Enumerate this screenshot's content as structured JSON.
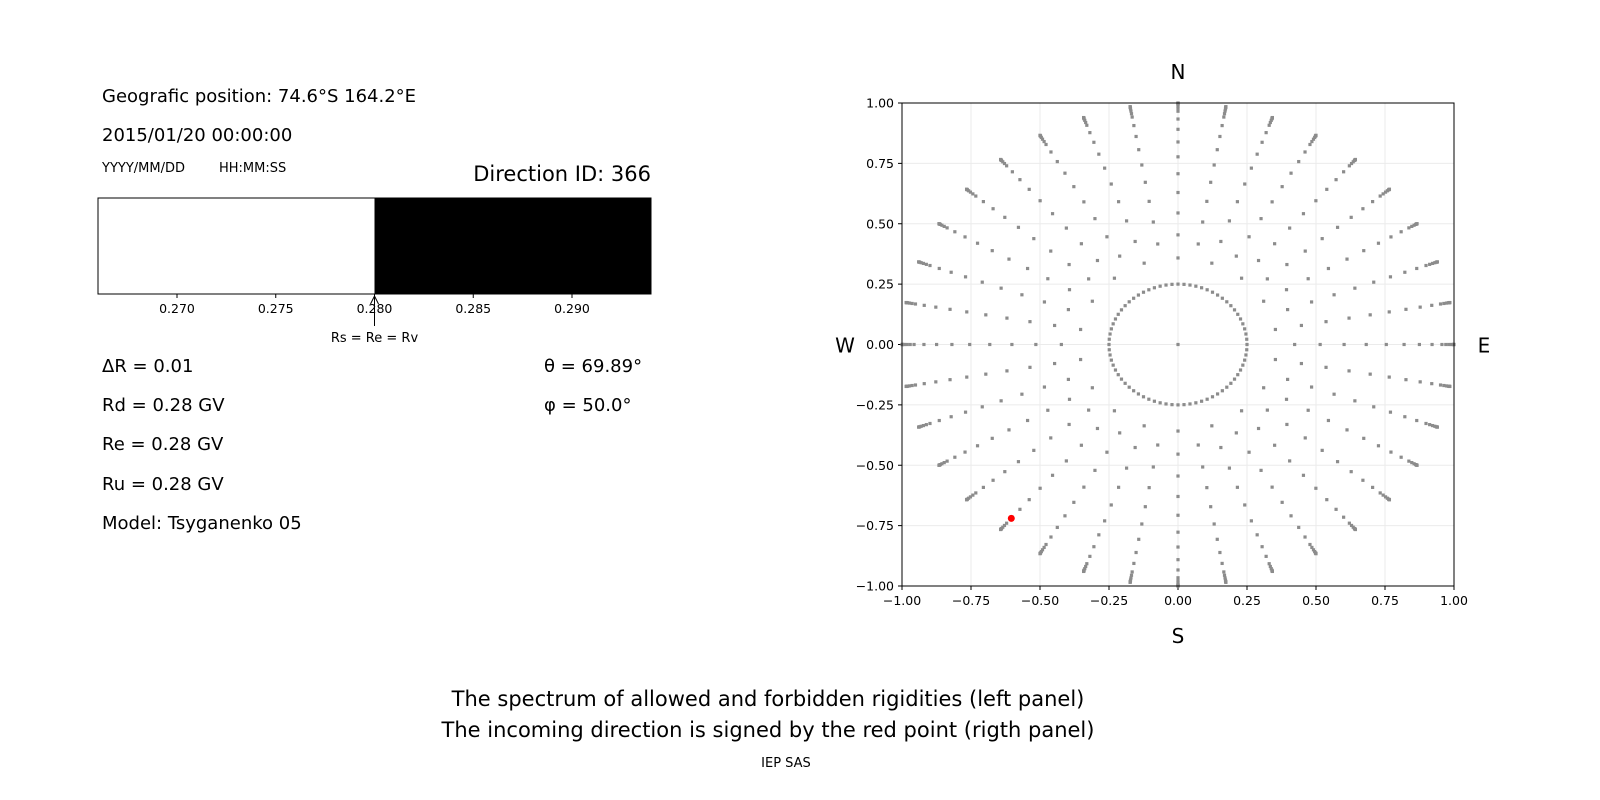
{
  "left_panel": {
    "position": "Geografic position: 74.6°S 164.2°E",
    "datetime": "2015/01/20 00:00:00",
    "date_format": "YYYY/MM/DD",
    "time_format": "HH:MM:SS",
    "direction_id": "Direction ID: 366",
    "delta_r": "ΔR = 0.01",
    "rd": "Rd = 0.28 GV",
    "re": "Re = 0.28 GV",
    "ru": "Ru = 0.28 GV",
    "model": "Model: Tsyganenko 05",
    "theta": "θ = 69.89°",
    "phi": "φ = 50.0°"
  },
  "chart_data": [
    {
      "type": "bar",
      "xlim": [
        0.266,
        0.294
      ],
      "xticks": [
        "0.270",
        "0.275",
        "0.280",
        "0.285",
        "0.290"
      ],
      "xtick_values": [
        0.27,
        0.275,
        0.28,
        0.285,
        0.29
      ],
      "segments": [
        {
          "from": 0.266,
          "to": 0.28,
          "state": "allowed",
          "color": "#ffffff"
        },
        {
          "from": 0.28,
          "to": 0.294,
          "state": "forbidden",
          "color": "#000000"
        }
      ],
      "annotation": {
        "text": "Rs = Re = Rv",
        "x": 0.28
      }
    },
    {
      "type": "scatter",
      "xlim": [
        -1.0,
        1.0
      ],
      "ylim": [
        -1.0,
        1.0
      ],
      "xticks": [
        "−1.00",
        "−0.75",
        "−0.50",
        "−0.25",
        "0.00",
        "0.25",
        "0.50",
        "0.75",
        "1.00"
      ],
      "yticks": [
        "−1.00",
        "−0.75",
        "−0.50",
        "−0.25",
        "0.00",
        "0.25",
        "0.50",
        "0.75",
        "1.00"
      ],
      "tick_values": [
        -1.0,
        -0.75,
        -0.5,
        -0.25,
        0,
        0.25,
        0.5,
        0.75,
        1.0
      ],
      "grid": true,
      "compass": {
        "north": "N",
        "south": "S",
        "west": "W",
        "east": "E"
      },
      "grid_point_color": "#8c8c8c",
      "highlight_point": {
        "x": -0.604,
        "y": -0.72,
        "color": "#ff0000"
      }
    }
  ],
  "caption": {
    "line1": "The spectrum of allowed and forbidden rigidities (left panel)",
    "line2": "The incoming direction is signed by the red point (rigth panel)",
    "credit": "IEP SAS"
  }
}
